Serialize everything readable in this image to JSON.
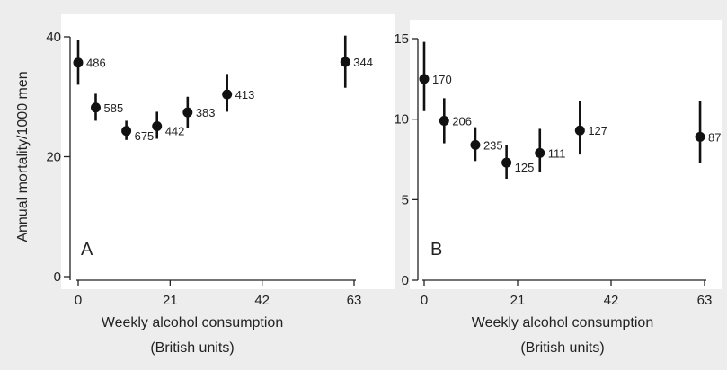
{
  "chart_data": [
    {
      "type": "scatter",
      "panel_label": "A",
      "ylabel": "Annual mortality/1000 men",
      "xlabel_line1": "Weekly alcohol consumption",
      "xlabel_line2": "(British units)",
      "xlim": [
        0,
        63
      ],
      "ylim": [
        0,
        40
      ],
      "xticks": [
        0,
        21,
        42,
        63
      ],
      "yticks": [
        0,
        20,
        40
      ],
      "points": [
        {
          "x": 0,
          "y": 35.7,
          "lo": 32.0,
          "hi": 39.5,
          "label": "486"
        },
        {
          "x": 4,
          "y": 28.2,
          "lo": 26.0,
          "hi": 30.5,
          "label": "585"
        },
        {
          "x": 11,
          "y": 24.3,
          "lo": 22.8,
          "hi": 26.0,
          "label": "675"
        },
        {
          "x": 18,
          "y": 25.1,
          "lo": 23.0,
          "hi": 27.5,
          "label": "442"
        },
        {
          "x": 25,
          "y": 27.4,
          "lo": 24.8,
          "hi": 30.0,
          "label": "383"
        },
        {
          "x": 34,
          "y": 30.4,
          "lo": 27.5,
          "hi": 33.8,
          "label": "413"
        },
        {
          "x": 61,
          "y": 35.8,
          "lo": 31.5,
          "hi": 40.2,
          "label": "344"
        }
      ]
    },
    {
      "type": "scatter",
      "panel_label": "B",
      "ylabel": "",
      "xlabel_line1": "Weekly alcohol consumption",
      "xlabel_line2": "(British units)",
      "xlim": [
        0,
        63
      ],
      "ylim": [
        0,
        15
      ],
      "xticks": [
        0,
        21,
        42,
        63
      ],
      "yticks": [
        0,
        5,
        10,
        15
      ],
      "points": [
        {
          "x": 0,
          "y": 12.5,
          "lo": 10.5,
          "hi": 14.8,
          "label": "170"
        },
        {
          "x": 4.5,
          "y": 9.9,
          "lo": 8.5,
          "hi": 11.3,
          "label": "206"
        },
        {
          "x": 11.5,
          "y": 8.4,
          "lo": 7.4,
          "hi": 9.5,
          "label": "235"
        },
        {
          "x": 18.5,
          "y": 7.3,
          "lo": 6.3,
          "hi": 8.4,
          "label": "125"
        },
        {
          "x": 26,
          "y": 7.9,
          "lo": 6.7,
          "hi": 9.4,
          "label": "111"
        },
        {
          "x": 35,
          "y": 9.3,
          "lo": 7.8,
          "hi": 11.1,
          "label": "127"
        },
        {
          "x": 62,
          "y": 8.9,
          "lo": 7.3,
          "hi": 11.1,
          "label": "87"
        }
      ]
    }
  ]
}
